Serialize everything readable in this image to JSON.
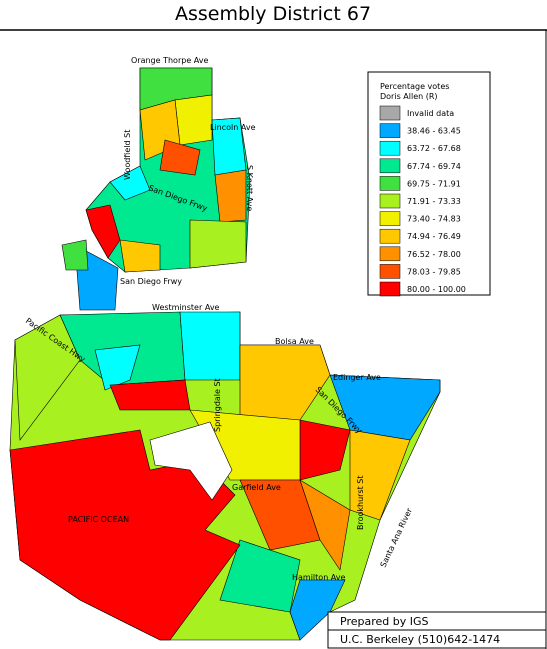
{
  "title": "Assembly District 67",
  "legend": {
    "title": [
      "Percentage votes",
      "Doris Allen (R)"
    ],
    "items": [
      {
        "label": "Invalid data",
        "color": "#a8a8a8"
      },
      {
        "label": "38.46 - 63.45",
        "color": "#00a8ff"
      },
      {
        "label": "63.72 - 67.68",
        "color": "#00ffff"
      },
      {
        "label": "67.74 - 69.74",
        "color": "#00e890"
      },
      {
        "label": "69.75 - 71.91",
        "color": "#40e040"
      },
      {
        "label": "71.91 - 73.33",
        "color": "#a8f020"
      },
      {
        "label": "73.40 - 74.83",
        "color": "#f0f000"
      },
      {
        "label": "74.94 - 76.49",
        "color": "#ffc800"
      },
      {
        "label": "76.52 - 78.00",
        "color": "#ff9000"
      },
      {
        "label": "78.03 - 79.85",
        "color": "#ff5000"
      },
      {
        "label": "80.00 - 100.00",
        "color": "#ff0000"
      }
    ]
  },
  "street_labels": [
    "Orange Thorpe Ave",
    "Lincoln Ave",
    "Woodfield St",
    "S Knott Ave",
    "San Diego Frwy",
    "San Diego Frwy",
    "Westminster Ave",
    "Pacific Coast Hwy",
    "Bolsa Ave",
    "Edinger Ave",
    "Springdale St",
    "San Diego Frwy",
    "Garfield Ave",
    "Brookhurst St",
    "Santa Ana River",
    "Hamilton Ave"
  ],
  "area_labels": [
    "PACIFIC OCEAN"
  ],
  "footer": [
    "Prepared by IGS",
    "U.C. Berkeley (510)642-1474"
  ]
}
